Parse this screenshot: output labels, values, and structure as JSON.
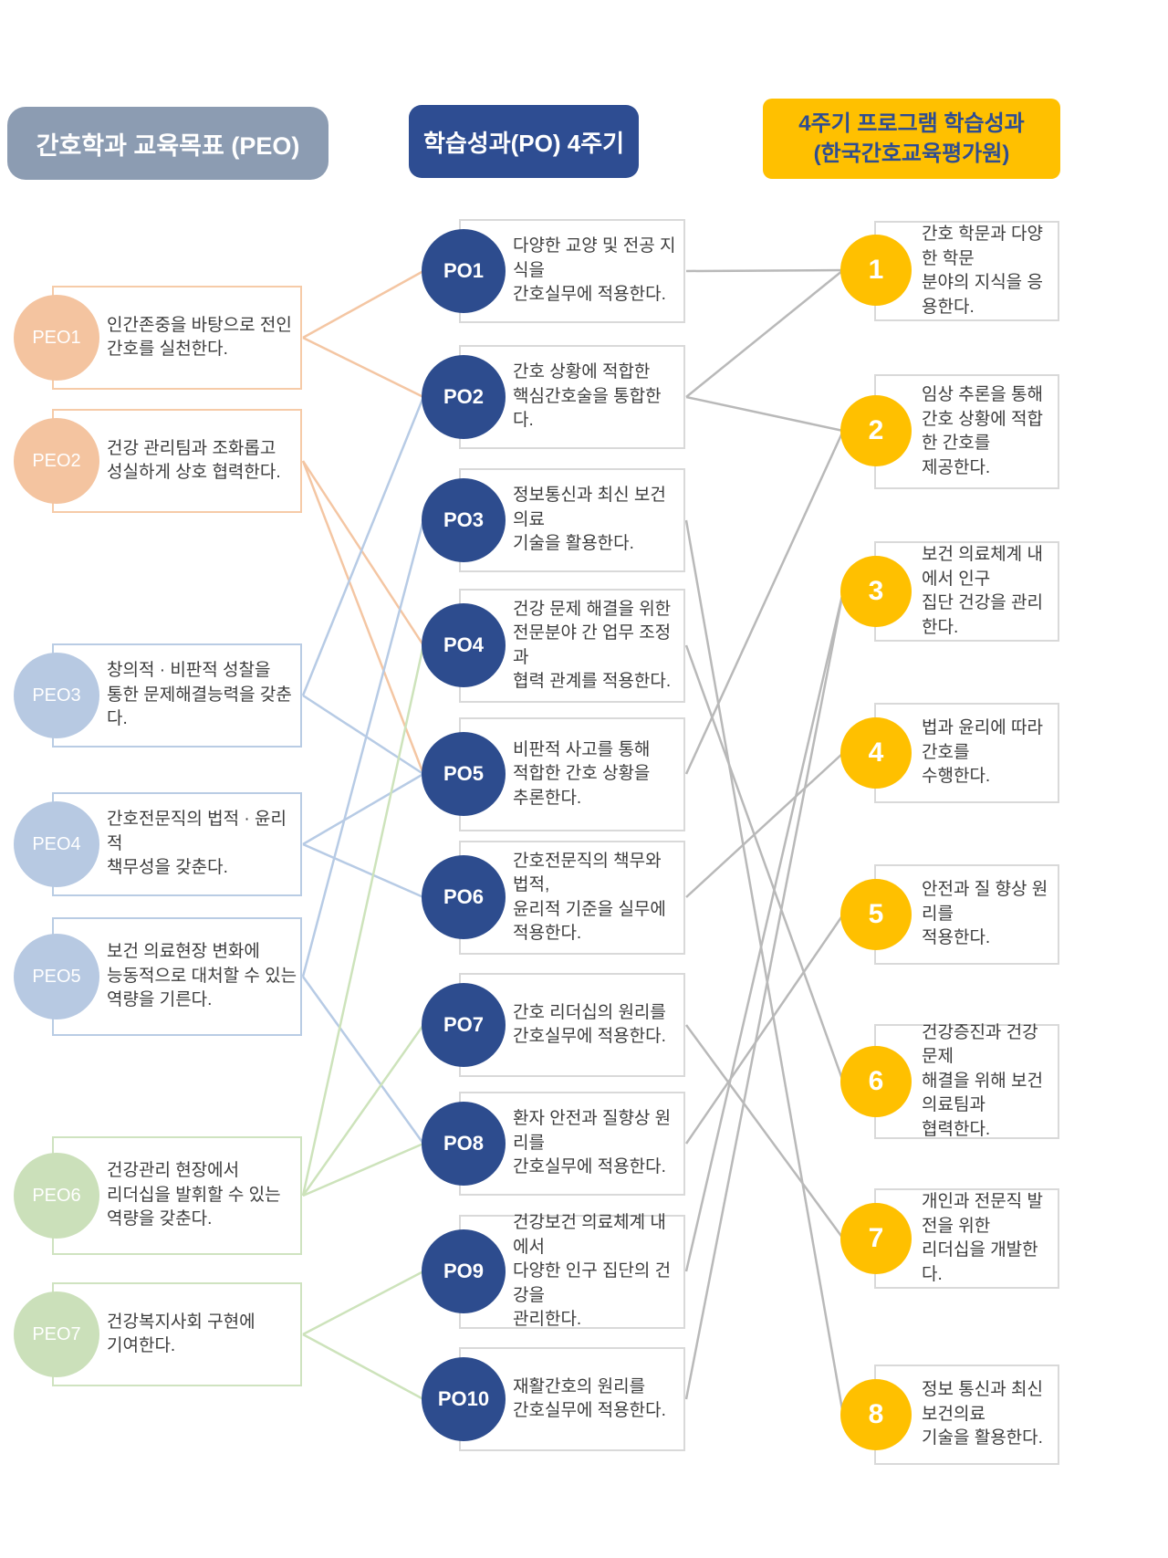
{
  "headers": {
    "peo": "간호학과 교육목표 (PEO)",
    "po": "학습성과(PO) 4주기",
    "outcome": "4주기 프로그램 학습성과\n(한국간호교육평가원)"
  },
  "colors": {
    "header_slate": "#8c9cb2",
    "header_navy": "#2e4d92",
    "outcome_gold": "#ffc000",
    "po_navy": "#2d4c8e",
    "peo_peach": "#f4c4a0",
    "peo_blue": "#b7c9e2",
    "peo_green": "#cbe0ba",
    "connector_gray": "#b9b9b9",
    "box_border_gray": "#d9d9d9"
  },
  "peo": {
    "items": [
      {
        "id": "PEO1",
        "label": "PEO1",
        "color_group": "peach",
        "line_color": "#f4c6a3",
        "text": "인간존중을 바탕으로 전인\n간호를 실천한다."
      },
      {
        "id": "PEO2",
        "label": "PEO2",
        "color_group": "peach",
        "line_color": "#f4c6a3",
        "text": "건강 관리팀과 조화롭고\n성실하게 상호 협력한다."
      },
      {
        "id": "PEO3",
        "label": "PEO3",
        "color_group": "blue",
        "line_color": "#b7cbe5",
        "text": "창의적 · 비판적 성찰을\n통한 문제해결능력을 갖춘다."
      },
      {
        "id": "PEO4",
        "label": "PEO4",
        "color_group": "blue",
        "line_color": "#b7cbe5",
        "text": "간호전문직의 법적 · 윤리적\n책무성을 갖춘다."
      },
      {
        "id": "PEO5",
        "label": "PEO5",
        "color_group": "blue",
        "line_color": "#b7cbe5",
        "text": "보건 의료현장 변화에\n능동적으로 대처할 수 있는\n역량을 기른다."
      },
      {
        "id": "PEO6",
        "label": "PEO6",
        "color_group": "green",
        "line_color": "#cde3bb",
        "text": "건강관리 현장에서\n리더십을 발휘할 수 있는\n역량을 갖춘다."
      },
      {
        "id": "PEO7",
        "label": "PEO7",
        "color_group": "green",
        "line_color": "#cde3bb",
        "text": "건강복지사회 구현에\n기여한다."
      }
    ]
  },
  "po": {
    "items": [
      {
        "id": "PO1",
        "label": "PO1",
        "text": "다양한 교양 및 전공 지식을\n간호실무에 적용한다."
      },
      {
        "id": "PO2",
        "label": "PO2",
        "text": "간호 상황에 적합한\n핵심간호술을 통합한다."
      },
      {
        "id": "PO3",
        "label": "PO3",
        "text": "정보통신과 최신 보건의료\n기술을 활용한다."
      },
      {
        "id": "PO4",
        "label": "PO4",
        "text": "건강 문제 해결을 위한\n전문분야 간 업무 조정과\n협력 관계를 적용한다."
      },
      {
        "id": "PO5",
        "label": "PO5",
        "text": "비판적 사고를 통해\n적합한 간호 상황을\n추론한다."
      },
      {
        "id": "PO6",
        "label": "PO6",
        "text": "간호전문직의 책무와 법적,\n윤리적 기준을 실무에\n적용한다."
      },
      {
        "id": "PO7",
        "label": "PO7",
        "text": "간호 리더십의 원리를\n간호실무에 적용한다."
      },
      {
        "id": "PO8",
        "label": "PO8",
        "text": "환자 안전과 질향상 원리를\n간호실무에 적용한다."
      },
      {
        "id": "PO9",
        "label": "PO9",
        "text": "건강보건 의료체계 내에서\n다양한 인구 집단의 건강을\n관리한다."
      },
      {
        "id": "PO10",
        "label": "PO10",
        "text": "재활간호의 원리를\n간호실무에 적용한다."
      }
    ]
  },
  "outcome": {
    "items": [
      {
        "id": "1",
        "label": "1",
        "text": "간호 학문과 다양한 학문\n분야의 지식을 응용한다."
      },
      {
        "id": "2",
        "label": "2",
        "text": "임상 추론을 통해\n간호 상황에 적합한 간호를\n제공한다."
      },
      {
        "id": "3",
        "label": "3",
        "text": "보건 의료체계 내에서 인구\n집단 건강을 관리한다."
      },
      {
        "id": "4",
        "label": "4",
        "text": "법과 윤리에 따라 간호를\n수행한다."
      },
      {
        "id": "5",
        "label": "5",
        "text": "안전과 질 향상 원리를\n적용한다."
      },
      {
        "id": "6",
        "label": "6",
        "text": "건강증진과 건강 문제\n해결을 위해 보건 의료팀과\n협력한다."
      },
      {
        "id": "7",
        "label": "7",
        "text": "개인과 전문직 발전을 위한\n리더십을 개발한다."
      },
      {
        "id": "8",
        "label": "8",
        "text": "정보 통신과 최신 보건의료\n기술을 활용한다."
      }
    ]
  },
  "mappings": {
    "peo_to_po": [
      [
        "PEO1",
        "PO1"
      ],
      [
        "PEO1",
        "PO2"
      ],
      [
        "PEO2",
        "PO4"
      ],
      [
        "PEO2",
        "PO5"
      ],
      [
        "PEO3",
        "PO2"
      ],
      [
        "PEO3",
        "PO5"
      ],
      [
        "PEO4",
        "PO5"
      ],
      [
        "PEO4",
        "PO6"
      ],
      [
        "PEO5",
        "PO3"
      ],
      [
        "PEO5",
        "PO8"
      ],
      [
        "PEO6",
        "PO4"
      ],
      [
        "PEO6",
        "PO7"
      ],
      [
        "PEO6",
        "PO8"
      ],
      [
        "PEO7",
        "PO9"
      ],
      [
        "PEO7",
        "PO10"
      ]
    ],
    "po_to_outcome": [
      [
        "PO1",
        "1"
      ],
      [
        "PO2",
        "1"
      ],
      [
        "PO2",
        "2"
      ],
      [
        "PO3",
        "8"
      ],
      [
        "PO4",
        "6"
      ],
      [
        "PO5",
        "2"
      ],
      [
        "PO6",
        "4"
      ],
      [
        "PO7",
        "7"
      ],
      [
        "PO8",
        "5"
      ],
      [
        "PO9",
        "3"
      ],
      [
        "PO10",
        "3"
      ]
    ]
  }
}
